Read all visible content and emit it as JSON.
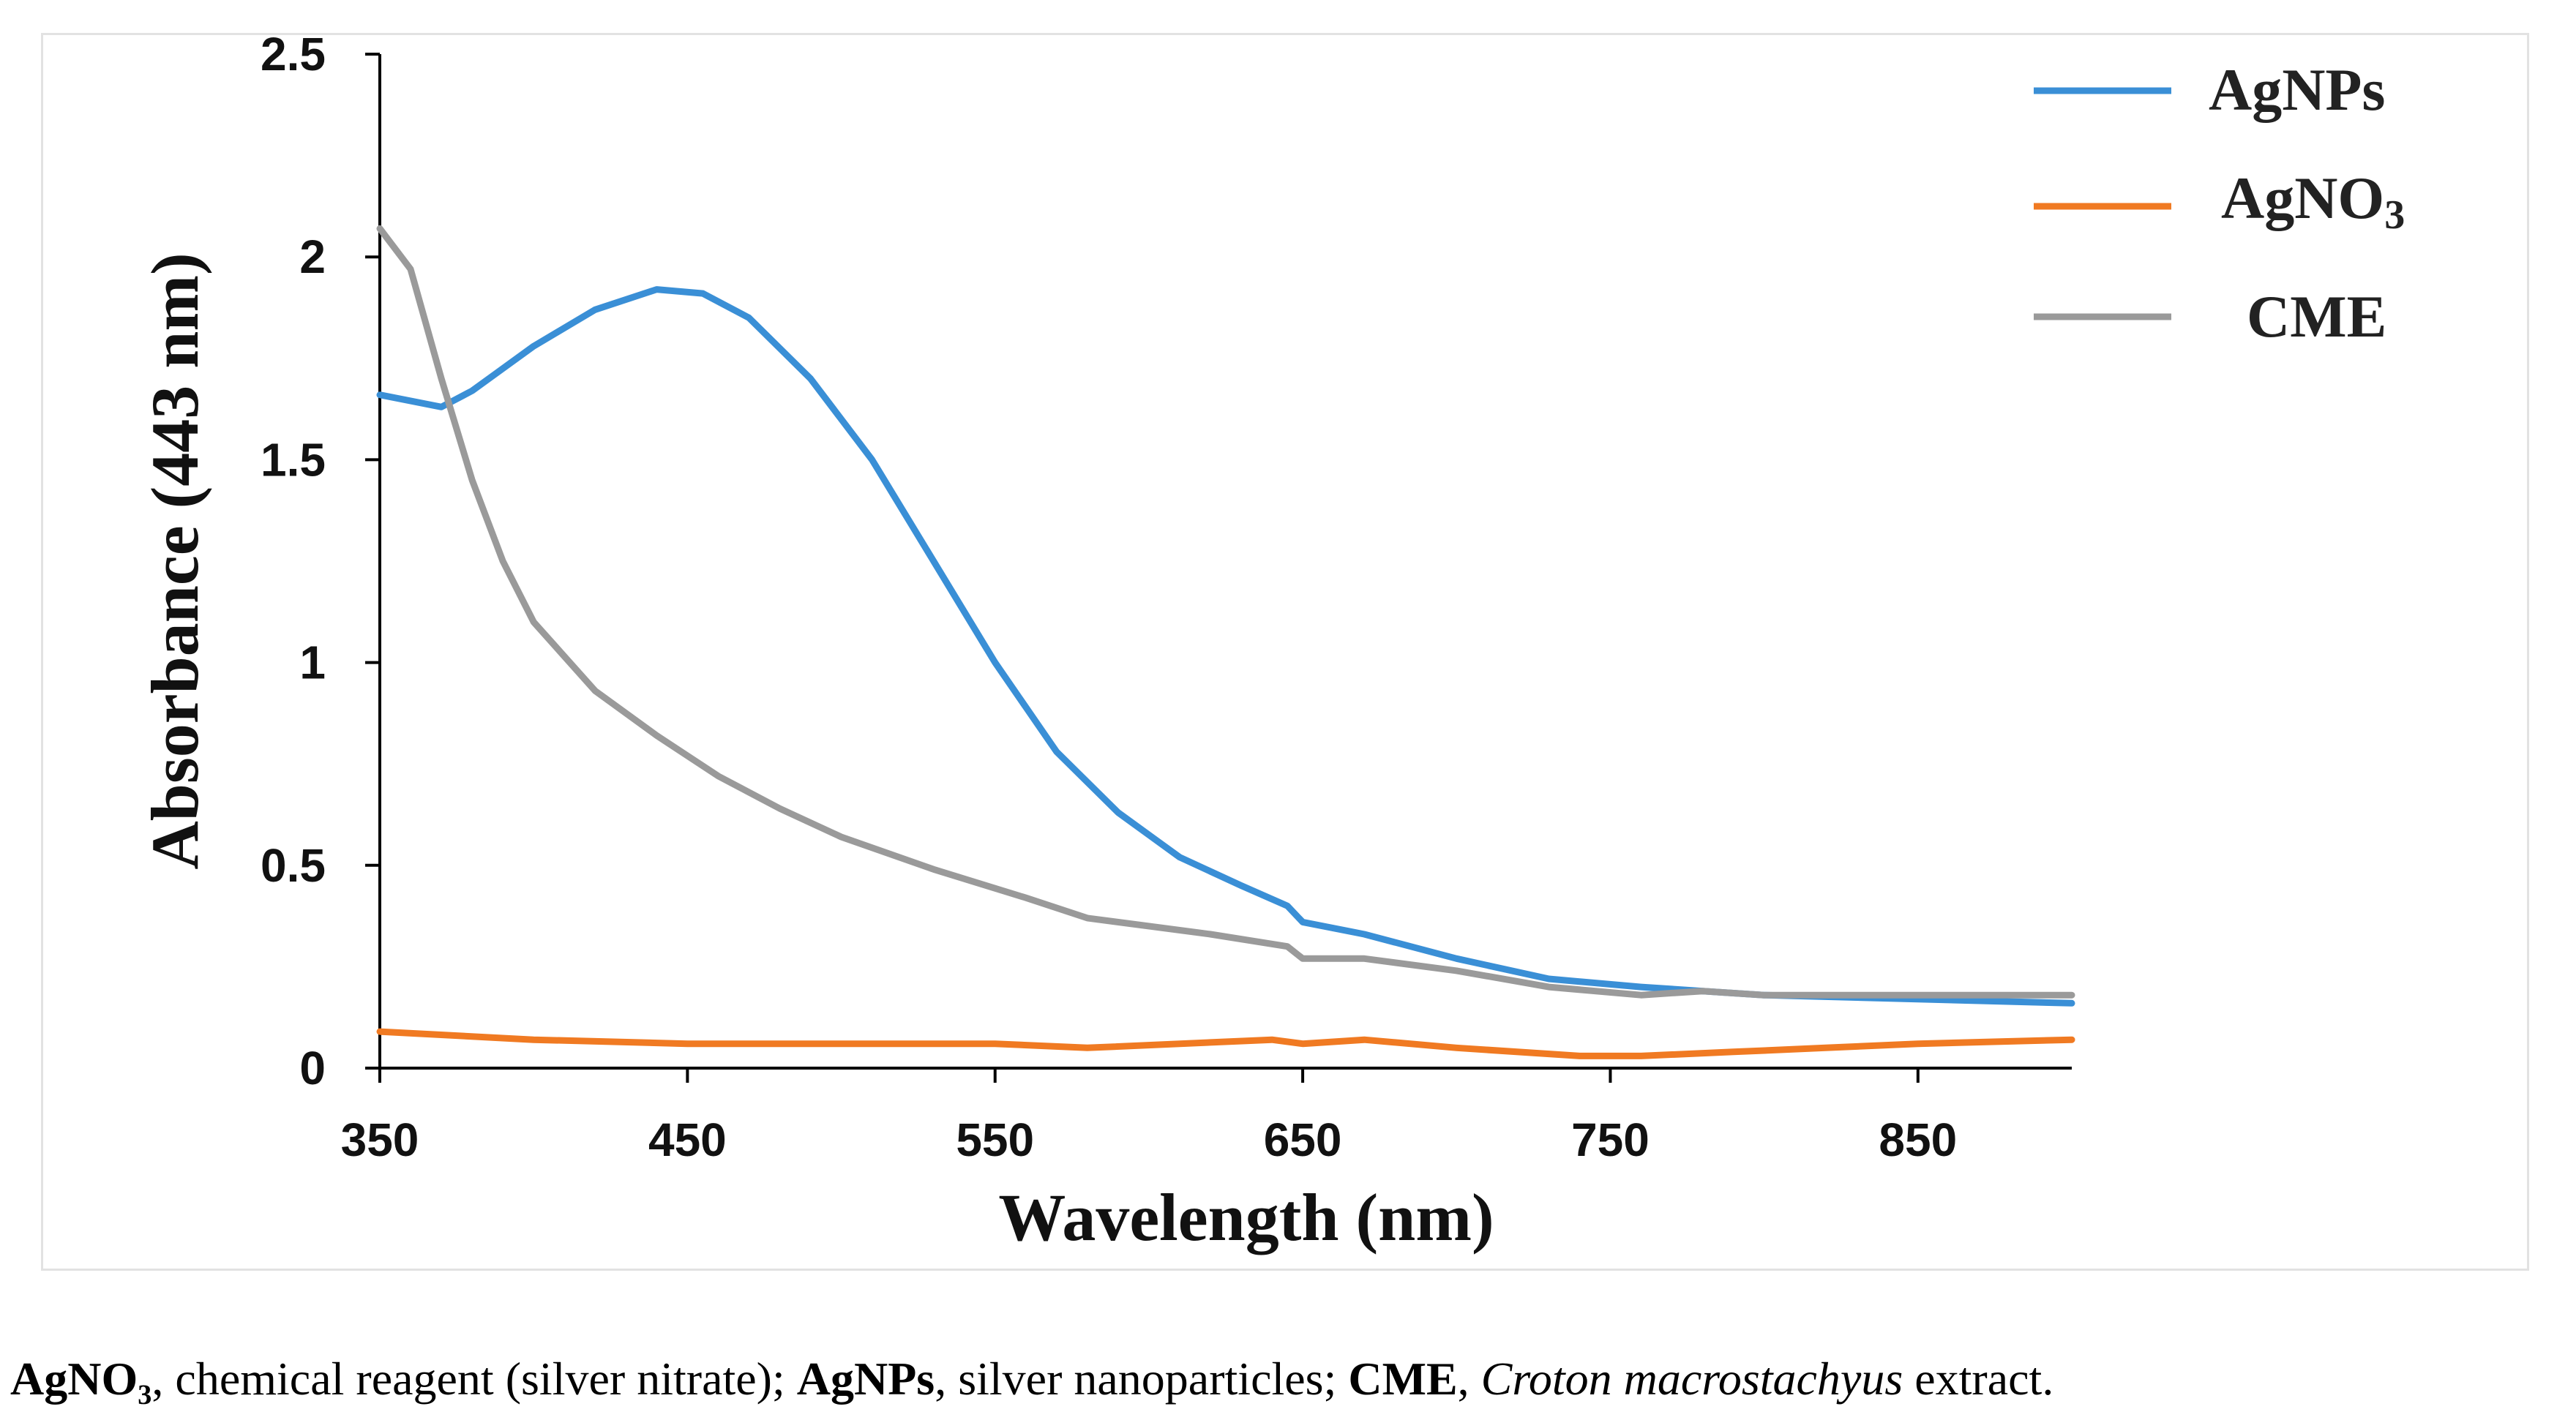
{
  "chart_data": {
    "type": "line",
    "xlabel": "Wavelength (nm)",
    "ylabel": "Absorbance (443 nm)",
    "xlim": [
      350,
      900
    ],
    "ylim": [
      0,
      2.5
    ],
    "xticks": [
      "350",
      "450",
      "550",
      "650",
      "750",
      "850"
    ],
    "yticks": [
      "0",
      "0.5",
      "1",
      "1.5",
      "2",
      "2.5"
    ],
    "grid": false,
    "legend_position": "top-right",
    "series": [
      {
        "name": "AgNPs",
        "color": "#3a8fd6",
        "x": [
          350,
          370,
          380,
          400,
          420,
          440,
          455,
          470,
          490,
          510,
          530,
          550,
          570,
          590,
          610,
          630,
          645,
          650,
          670,
          700,
          730,
          760,
          780,
          800,
          850,
          900
        ],
        "y": [
          1.66,
          1.63,
          1.67,
          1.78,
          1.87,
          1.92,
          1.91,
          1.85,
          1.7,
          1.5,
          1.25,
          1.0,
          0.78,
          0.63,
          0.52,
          0.45,
          0.4,
          0.36,
          0.33,
          0.27,
          0.22,
          0.2,
          0.19,
          0.18,
          0.17,
          0.16
        ]
      },
      {
        "name": "AgNO3",
        "color": "#f07a22",
        "x": [
          350,
          400,
          450,
          550,
          580,
          640,
          650,
          670,
          700,
          740,
          760,
          790,
          820,
          850,
          900
        ],
        "y": [
          0.09,
          0.07,
          0.06,
          0.06,
          0.05,
          0.07,
          0.06,
          0.07,
          0.05,
          0.03,
          0.03,
          0.04,
          0.05,
          0.06,
          0.07
        ]
      },
      {
        "name": "CME",
        "color": "#9a9a9a",
        "x": [
          350,
          360,
          370,
          380,
          390,
          400,
          420,
          440,
          460,
          480,
          500,
          530,
          560,
          580,
          620,
          645,
          650,
          670,
          700,
          730,
          760,
          780,
          800,
          850,
          900
        ],
        "y": [
          2.07,
          1.97,
          1.7,
          1.45,
          1.25,
          1.1,
          0.93,
          0.82,
          0.72,
          0.64,
          0.57,
          0.49,
          0.42,
          0.37,
          0.33,
          0.3,
          0.27,
          0.27,
          0.24,
          0.2,
          0.18,
          0.19,
          0.18,
          0.18,
          0.18
        ]
      }
    ]
  },
  "legend": {
    "agnps": "AgNPs",
    "agno3_main": "AgNO",
    "agno3_sub": "3",
    "cme": "CME"
  },
  "caption": {
    "t1": "AgNO₃",
    "t2": ", chemical reagent (silver nitrate); ",
    "t3": "AgNPs",
    "t4": ", silver nanoparticles; ",
    "t5": "CME",
    "t6": ", ",
    "t7": "Croton macrostachyus",
    "t8": " extract."
  }
}
